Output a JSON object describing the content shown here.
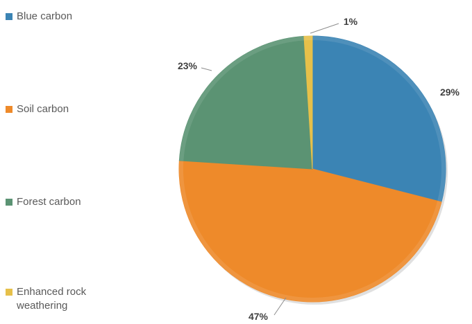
{
  "chart_data": {
    "type": "pie",
    "title": "",
    "slices": [
      {
        "name": "Blue carbon",
        "value": 29,
        "label": "29%",
        "color": "#3b84b4"
      },
      {
        "name": "Soil carbon",
        "value": 47,
        "label": "47%",
        "color": "#ee8a2a"
      },
      {
        "name": "Forest carbon",
        "value": 23,
        "label": "23%",
        "color": "#5b9373"
      },
      {
        "name": "Enhanced rock weathering",
        "value": 1,
        "label": "1%",
        "color": "#e6c04a"
      }
    ],
    "legend_position": "left"
  },
  "legend": {
    "items": [
      {
        "label": "Blue carbon",
        "color": "#3b84b4"
      },
      {
        "label": "Soil carbon",
        "color": "#ee8a2a"
      },
      {
        "label": "Forest carbon",
        "color": "#5b9373"
      },
      {
        "label": "Enhanced rock weathering",
        "color": "#e6c04a"
      }
    ]
  }
}
